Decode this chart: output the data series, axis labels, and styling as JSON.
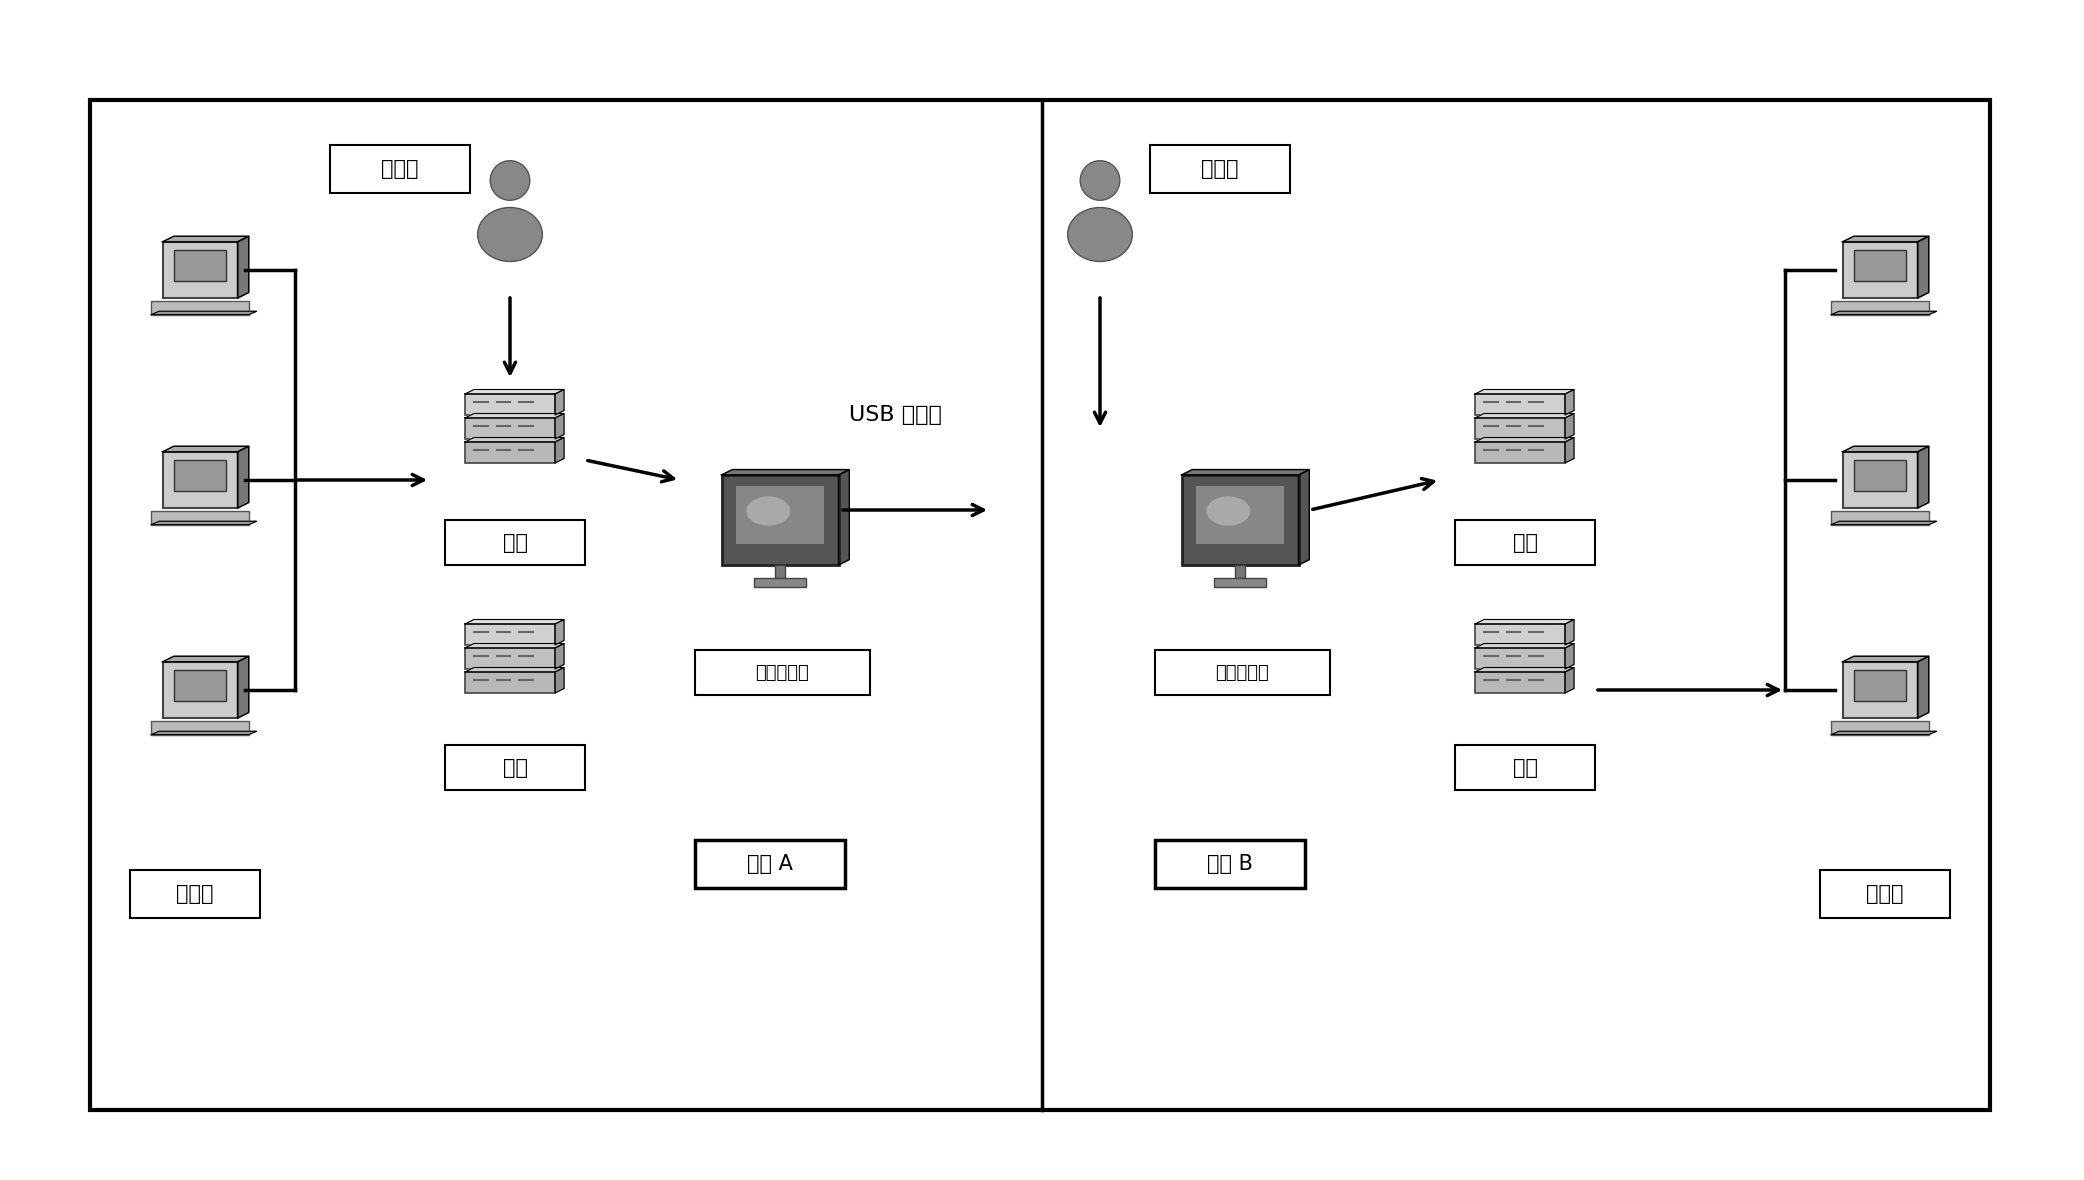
{
  "bg_color": "#ffffff",
  "labels": {
    "admin_left": "管理员",
    "admin_right": "管理员",
    "send_left": "发送",
    "recv_left": "接收",
    "send_right": "发送",
    "recv_right": "接收",
    "server_left": "传输服务器",
    "server_right": "传输服务器",
    "network_a": "网络 A",
    "network_b": "网络 B",
    "client_left": "客户端",
    "client_right": "客户端",
    "usb_label": "USB 专用线"
  },
  "font_size_label": 15,
  "font_size_network": 15,
  "font_size_client": 15,
  "font_size_usb": 16
}
